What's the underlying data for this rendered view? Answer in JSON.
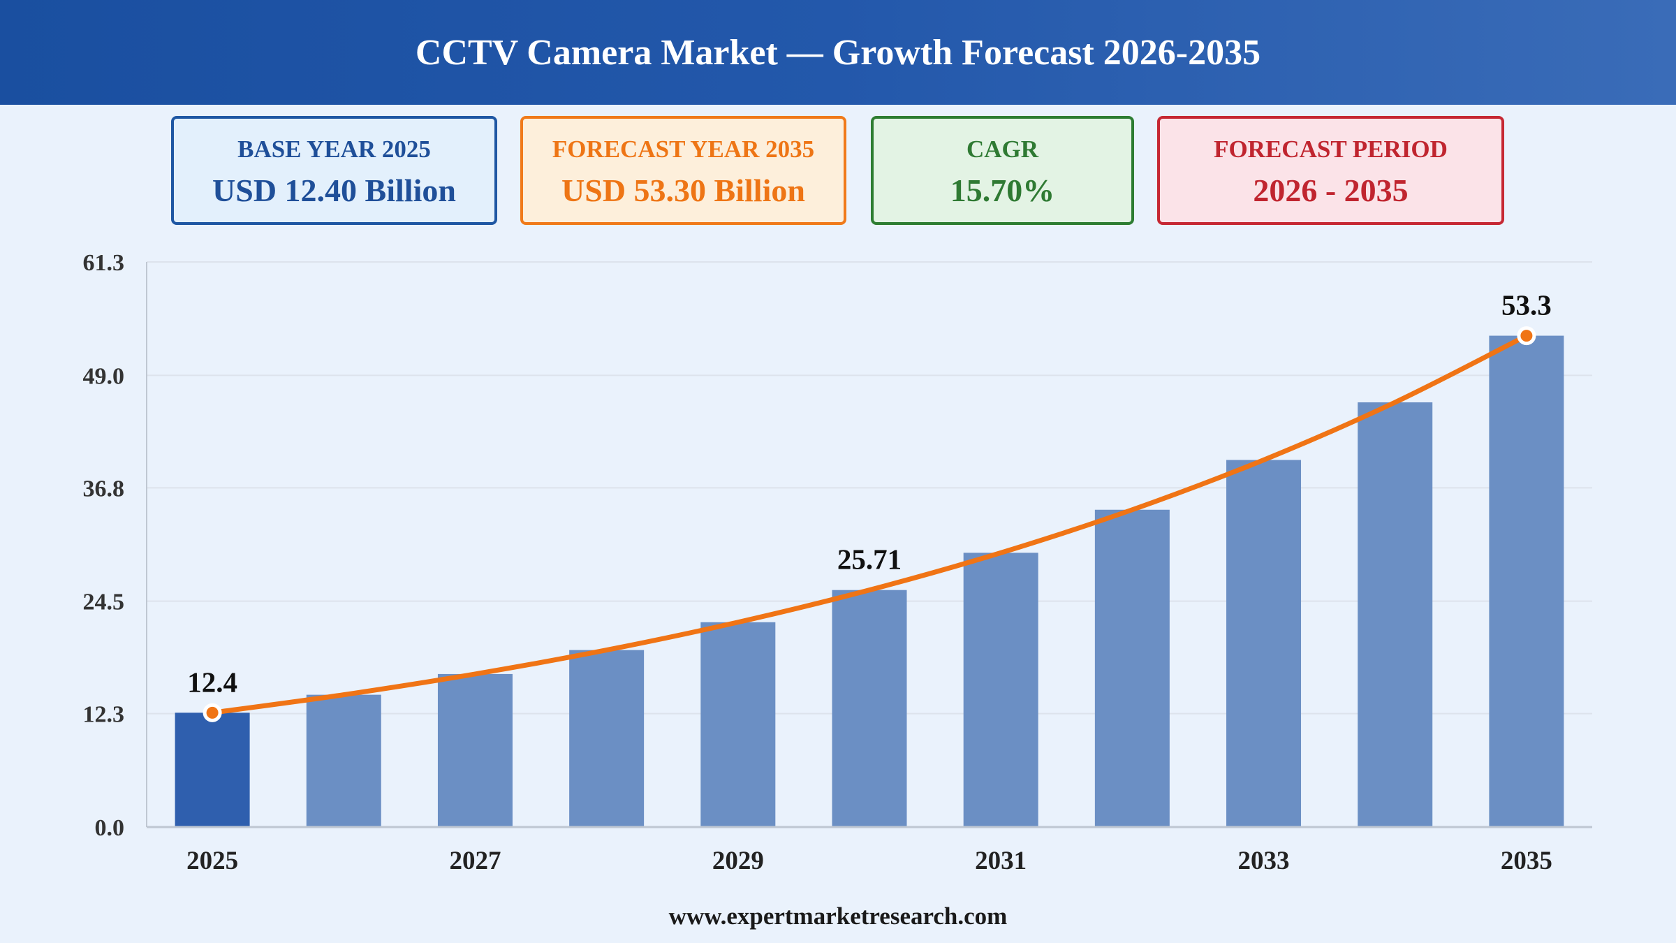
{
  "header": {
    "title": "CCTV Camera Market — Growth Forecast 2026-2035"
  },
  "cards": [
    {
      "label": "BASE YEAR 2025",
      "value": "USD 12.40 Billion"
    },
    {
      "label": "FORECAST YEAR 2035",
      "value": "USD 53.30 Billion"
    },
    {
      "label": "CAGR",
      "value": "15.70%"
    },
    {
      "label": "FORECAST PERIOD",
      "value": "2026 - 2035"
    }
  ],
  "colors": {
    "base_bar": "#2f5fae",
    "forecast_bar": "#6b8fc4",
    "trend_line": "#f07415",
    "grid": "#dde3ec"
  },
  "chart_data": {
    "type": "bar",
    "x": [
      2025,
      2026,
      2027,
      2028,
      2029,
      2030,
      2031,
      2032,
      2033,
      2034,
      2035
    ],
    "values": [
      12.4,
      14.35,
      16.6,
      19.2,
      22.22,
      25.71,
      29.75,
      34.42,
      39.82,
      46.07,
      53.3
    ],
    "highlight_first": true,
    "trend_line": true,
    "data_labels": [
      {
        "index": 0,
        "text": "12.4"
      },
      {
        "index": 5,
        "text": "25.71"
      },
      {
        "index": 10,
        "text": "53.3"
      }
    ],
    "x_tick_labels": [
      "2025",
      "2027",
      "2029",
      "2031",
      "2033",
      "2035"
    ],
    "y_ticks": [
      "0.0",
      "12.3",
      "24.5",
      "36.8",
      "49.0",
      "61.3"
    ],
    "ylim": [
      0,
      61.3
    ],
    "grid": true,
    "xlabel": "",
    "ylabel": ""
  },
  "footer": {
    "source": "www.expertmarketresearch.com"
  }
}
